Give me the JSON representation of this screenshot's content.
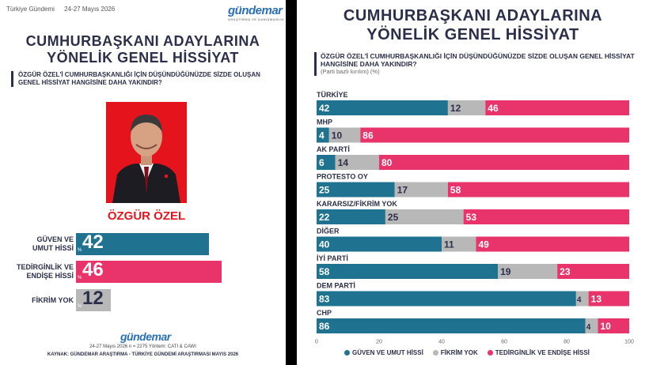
{
  "left": {
    "header_left": "Türkiye Gündemi",
    "header_date": "24-27 Mayıs 2026",
    "logo": "gündemar",
    "logo_sub": "ARAŞTIRMA VE DANIŞMANLIK",
    "title_line1": "CUMHURBAŞKANI ADAYLARINA",
    "title_line2": "YÖNELİK GENEL HİSSİYAT",
    "question": "ÖZGÜR ÖZEL'İ CUMHURBAŞKANLIĞI İÇİN DÜŞÜNDÜĞÜNÜZDE SİZDE OLUŞAN GENEL HİSSİYAT HANGİSİNE DAHA YAKINDIR?",
    "candidate_name": "ÖZGÜR ÖZEL",
    "rows": [
      {
        "label": "GÜVEN VE UMUT HİSSİ",
        "value": "42",
        "pct": "%",
        "fraction": 0.42,
        "color": "#1f7391"
      },
      {
        "label": "TEDİRGİNLİK VE ENDİŞE HİSSİ",
        "value": "46",
        "pct": "%",
        "fraction": 0.46,
        "color": "#e8336b"
      },
      {
        "label": "FİKRİM YOK",
        "value": "12",
        "pct": "%",
        "fraction": 0.12,
        "color": "#b8b8b8"
      }
    ],
    "footer_logo": "gündemar",
    "footer_meta": "24-27 Mayıs 2026 n = 2275 Yöntem: CATI & CAWI",
    "footer_source": "KAYNAK: GÜNDEMAR ARAŞTIRMA - TÜRKİYE GÜNDEMİ ARAŞTIRMASI MAYIS 2026"
  },
  "right": {
    "title_line1": "CUMHURBAŞKANI ADAYLARINA",
    "title_line2": "YÖNELİK GENEL HİSSİYAT",
    "question": "ÖZGÜR ÖZEL'İ CUMHURBAŞKANLIĞI İÇİN DÜŞÜNDÜĞÜNÜZDE SİZDE OLUŞAN GENEL HİSSİYAT HANGİSİNE DAHA YAKINDIR?",
    "note": "(Parti bazlı kırılım) (%)"
  },
  "colors": {
    "guven": "#1f7391",
    "fikrim": "#b8b8b8",
    "tedirgin": "#e8336b",
    "dark": "#2b2f4a"
  },
  "chart_data": {
    "type": "bar",
    "orientation": "horizontal",
    "stacked": true,
    "categories": [
      "TÜRKİYE",
      "MHP",
      "AK PARTİ",
      "PROTESTO OY",
      "KARARSIZ/FİKRİM YOK",
      "DİĞER",
      "İYİ PARTİ",
      "DEM PARTİ",
      "CHP"
    ],
    "series": [
      {
        "name": "GÜVEN VE UMUT HİSSİ",
        "values": [
          42,
          4,
          6,
          25,
          22,
          40,
          58,
          83,
          86
        ]
      },
      {
        "name": "FİKRİM YOK",
        "values": [
          12,
          10,
          14,
          17,
          25,
          11,
          19,
          4,
          4
        ]
      },
      {
        "name": "TEDİRGİNLİK VE ENDİŞE HİSSİ",
        "values": [
          46,
          86,
          80,
          58,
          53,
          49,
          23,
          13,
          10
        ]
      }
    ],
    "xlim": [
      0,
      100
    ],
    "xticks": [
      "0",
      "20",
      "40",
      "60",
      "80",
      "100"
    ],
    "legend_position": "bottom"
  }
}
